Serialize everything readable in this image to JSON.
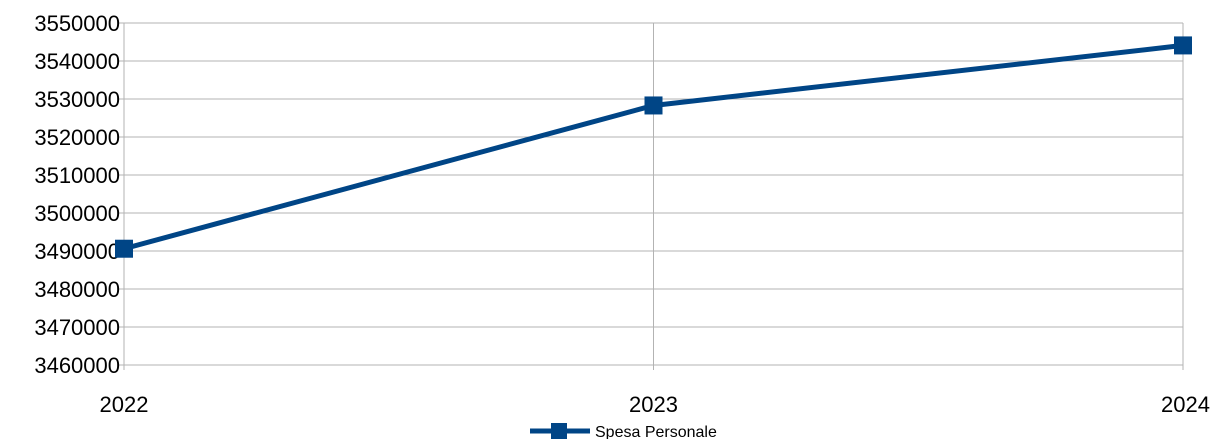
{
  "chart_data": {
    "type": "line",
    "title": "",
    "xlabel": "",
    "ylabel": "",
    "categories": [
      "2022",
      "2023",
      "2024"
    ],
    "series": [
      {
        "name": "Spesa Personale",
        "values": [
          3490600,
          3528300,
          3544100
        ],
        "color": "#004586",
        "marker": "square"
      }
    ],
    "ylim": [
      3460000,
      3550000
    ],
    "yticks": [
      "3460000",
      "3470000",
      "3480000",
      "3490000",
      "3500000",
      "3510000",
      "3520000",
      "3530000",
      "3540000",
      "3550000"
    ],
    "grid": true,
    "legend_position": "bottom-center",
    "colors": {
      "grid": "#b3b3b3",
      "series": "#004586"
    }
  }
}
